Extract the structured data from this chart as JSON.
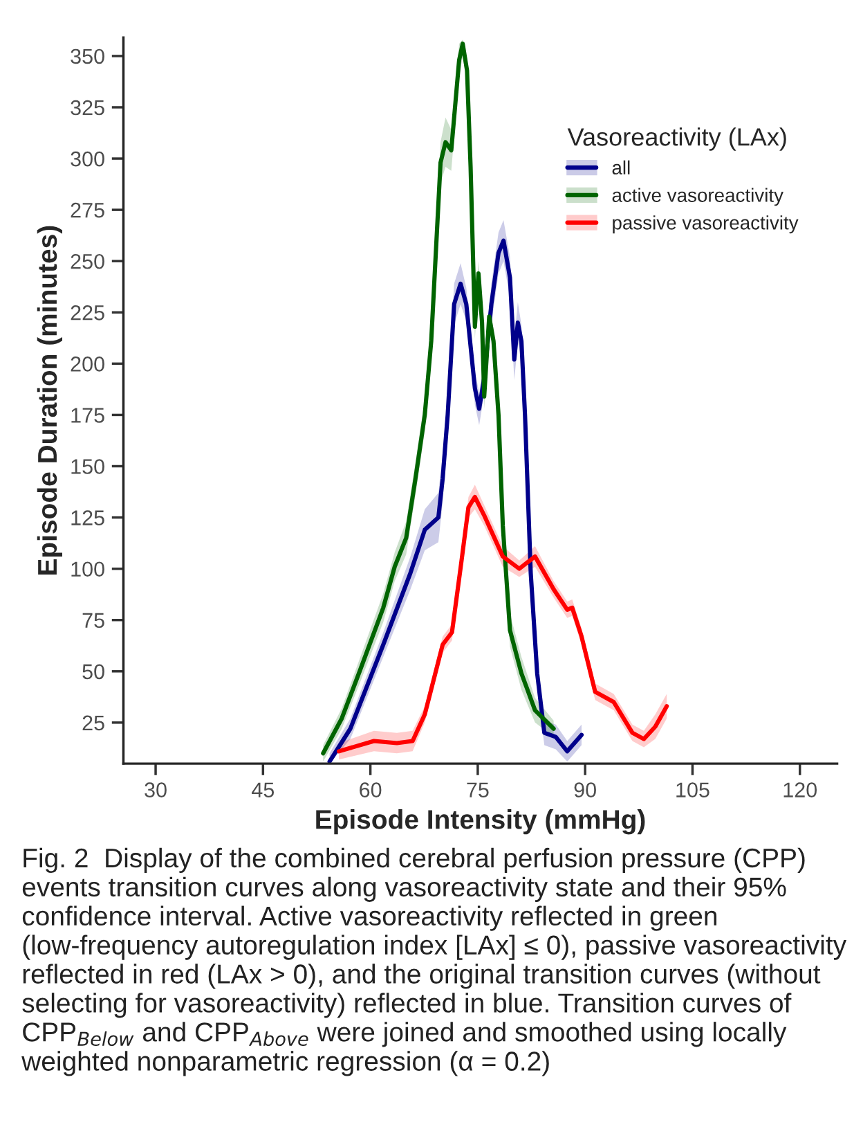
{
  "chart_data": {
    "type": "line",
    "xlabel": "Episode Intensity (mmHg)",
    "ylabel": "Episode Duration (minutes)",
    "legend_title": "Vasoreactivity (LAx)",
    "xlim": [
      25.5,
      125.2
    ],
    "ylim": [
      5,
      359
    ],
    "xticks": [
      30,
      45,
      60,
      75,
      90,
      105,
      120
    ],
    "yticks": [
      25,
      50,
      75,
      100,
      125,
      150,
      175,
      200,
      225,
      250,
      275,
      300,
      325,
      350
    ],
    "grid": false,
    "legend": "top right",
    "marker": "none",
    "line_style": "solid",
    "series": [
      {
        "name": "all",
        "color": "#00008b",
        "x": [
          54.3,
          57.2,
          61.8,
          65.6,
          67.6,
          69.5,
          70.1,
          70.8,
          71.7,
          72.6,
          73.4,
          74.6,
          75.2,
          75.9,
          76.9,
          77.9,
          78.6,
          79.5,
          80.1,
          80.6,
          81.1,
          81.6,
          82.4,
          83.3,
          84.3,
          85.9,
          87.5,
          89.5
        ],
        "values": [
          6,
          22,
          63,
          98,
          119,
          125,
          144,
          175,
          229,
          239,
          229,
          188,
          178,
          193,
          229,
          254,
          260,
          242,
          202,
          220,
          211,
          175,
          98,
          49,
          20,
          18,
          11,
          19
        ],
        "lower": [
          5,
          17,
          57,
          90,
          109,
          113,
          132,
          165,
          219,
          229,
          221,
          180,
          170,
          185,
          219,
          244,
          250,
          232,
          192,
          210,
          203,
          167,
          92,
          43,
          14,
          12,
          6,
          14
        ],
        "upper": [
          10,
          27,
          69,
          106,
          129,
          137,
          156,
          185,
          239,
          249,
          237,
          196,
          186,
          201,
          239,
          264,
          270,
          252,
          212,
          230,
          219,
          183,
          104,
          55,
          26,
          24,
          16,
          24
        ]
      },
      {
        "name": "active vasoreactivity",
        "color": "#006400",
        "x": [
          53.4,
          56.0,
          58.5,
          61.8,
          63.4,
          65.0,
          66.3,
          67.6,
          68.5,
          69.8,
          70.5,
          71.3,
          72.4,
          72.9,
          73.5,
          74.0,
          74.6,
          75.1,
          75.6,
          75.9,
          76.6,
          77.2,
          77.9,
          78.5,
          79.5,
          81.1,
          83.0,
          85.6
        ],
        "values": [
          10,
          27,
          50,
          81,
          101,
          115,
          144,
          175,
          211,
          298,
          308,
          304,
          348,
          356,
          343,
          296,
          218,
          244,
          220,
          184,
          223,
          211,
          175,
          121,
          70,
          49,
          31,
          22
        ],
        "lower": [
          6,
          22,
          44,
          74,
          94,
          107,
          136,
          167,
          203,
          288,
          296,
          294,
          340,
          350,
          337,
          290,
          212,
          238,
          214,
          178,
          217,
          205,
          169,
          115,
          62,
          41,
          25,
          18
        ],
        "upper": [
          14,
          32,
          56,
          88,
          108,
          123,
          152,
          183,
          219,
          308,
          320,
          314,
          356,
          358,
          349,
          302,
          224,
          250,
          226,
          190,
          229,
          217,
          181,
          127,
          78,
          57,
          37,
          26
        ]
      },
      {
        "name": "passive vasoreactivity",
        "color": "#ff0000",
        "x": [
          55.6,
          60.5,
          63.7,
          65.9,
          67.6,
          70.1,
          71.4,
          72.7,
          73.7,
          74.6,
          75.9,
          78.5,
          80.8,
          83.0,
          85.6,
          87.5,
          88.2,
          89.5,
          91.4,
          94.0,
          96.6,
          98.2,
          99.8,
          101.4
        ],
        "values": [
          11,
          16,
          15,
          16,
          29,
          63,
          69,
          103,
          130,
          135,
          126,
          106,
          100,
          106,
          90,
          80,
          81,
          67,
          40,
          35,
          20,
          17,
          23,
          33
        ],
        "lower": [
          7,
          11,
          10,
          11,
          25,
          59,
          65,
          99,
          125,
          129,
          121,
          101,
          96,
          101,
          86,
          76,
          77,
          63,
          36,
          31,
          16,
          13,
          17,
          27
        ],
        "upper": [
          15,
          21,
          20,
          21,
          33,
          67,
          73,
          107,
          135,
          141,
          131,
          111,
          104,
          111,
          94,
          84,
          85,
          71,
          44,
          39,
          24,
          21,
          29,
          39
        ]
      }
    ],
    "annotations": [
      "Fig. 2  Display of the combined cerebral perfusion pressure (CPP) events transition curves along vasoreactivity state and their 95% confidence interval. Active vasoreactivity reflected in green (low-frequency autoregulation index [LAx] ≤ 0), passive vasoreactivity reflected in red (LAx > 0), and the original transition curves (without selecting for vasoreactivity) reflected in blue. Transition curves of CPP$_{Below}$ and CPP$_{Above}$ were joined and smoothed using locally weighted nonparametric regression (α = 0.2)"
    ]
  }
}
